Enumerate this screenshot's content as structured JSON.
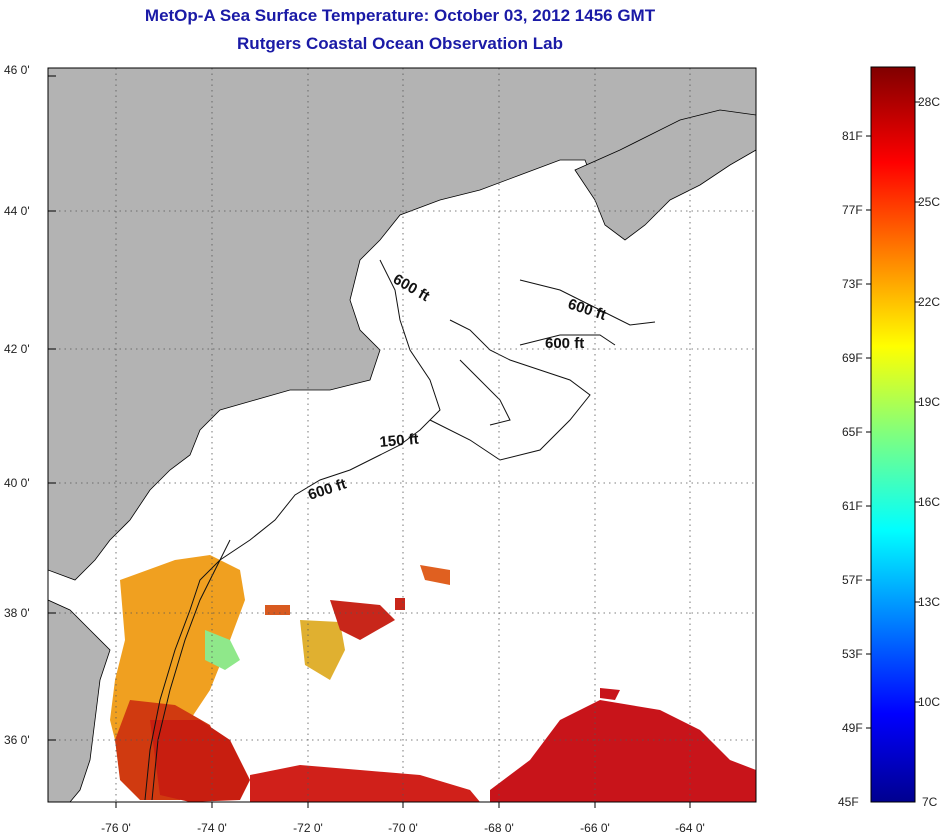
{
  "header": {
    "title": "MetOp-A Sea Surface Temperature:  October 03, 2012 1456 GMT",
    "subtitle": "Rutgers Coastal Ocean Observation Lab"
  },
  "map": {
    "lat_labels": [
      "46 0'",
      "44 0'",
      "42 0'",
      "40 0'",
      "38 0'",
      "36 0'"
    ],
    "lon_labels": [
      "-76 0'",
      "-74 0'",
      "-72 0'",
      "-70 0'",
      "-68 0'",
      "-66 0'",
      "-64 0'"
    ],
    "contour_labels": [
      "600 ft",
      "600 ft",
      "600 ft",
      "150 ft",
      "600 ft"
    ],
    "colors": {
      "land": "#b3b3b3",
      "ocean": "#ffffff",
      "grid": "#555555"
    }
  },
  "colorbar": {
    "f_labels": [
      "81F",
      "77F",
      "73F",
      "69F",
      "65F",
      "61F",
      "57F",
      "53F",
      "49F",
      "45F"
    ],
    "c_labels": [
      "28C",
      "25C",
      "22C",
      "19C",
      "16C",
      "13C",
      "10C",
      "7C"
    ]
  }
}
